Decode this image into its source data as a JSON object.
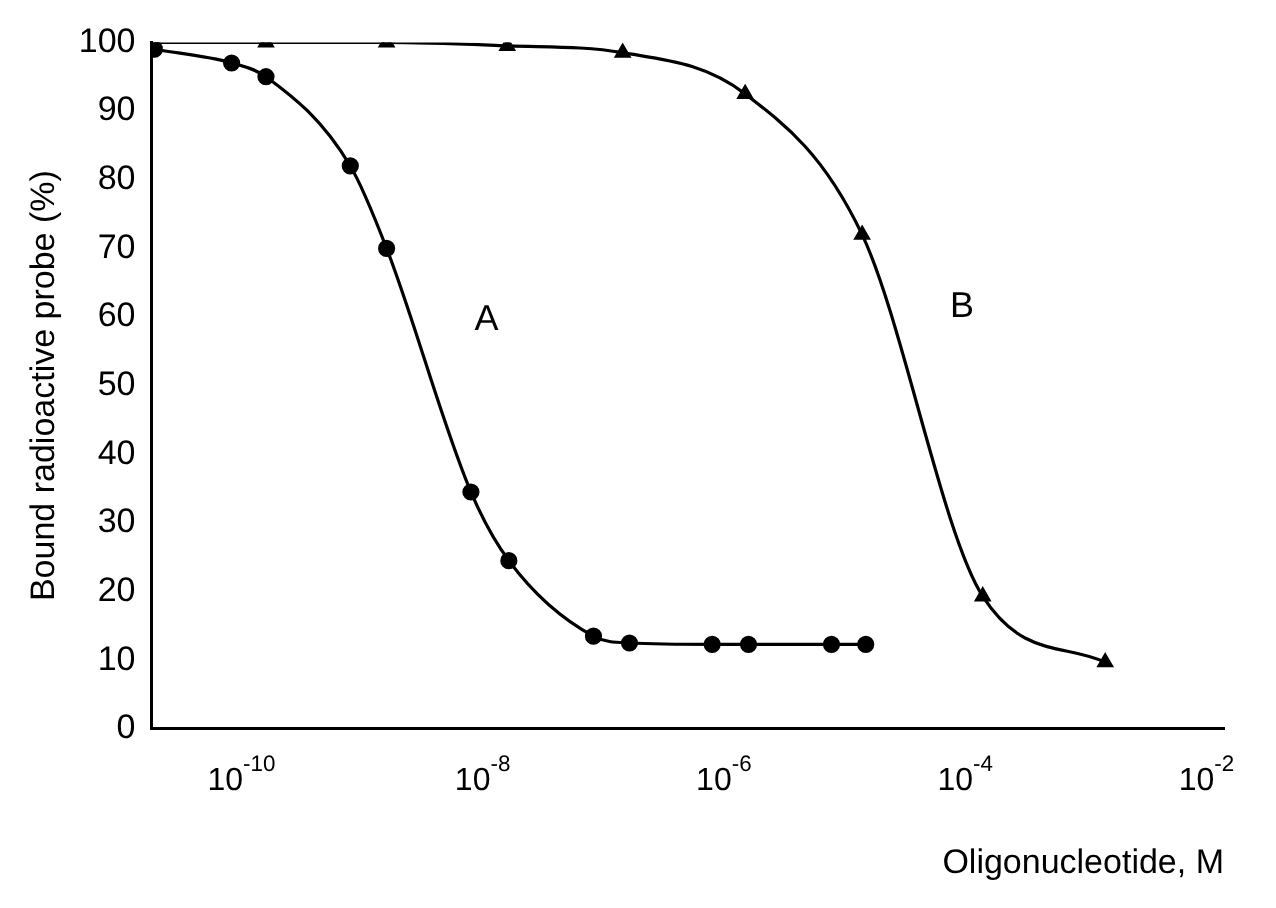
{
  "chart_data": {
    "type": "line",
    "xlabel": "Oligonucleotide, M",
    "ylabel": "Bound radioactive probe (%)",
    "log": "x",
    "xlim": [
      1.8e-11,
      0.014
    ],
    "ylim": [
      0,
      100
    ],
    "xticks": [
      {
        "value": 1e-10,
        "label": "10$^{-10}$"
      },
      {
        "value": 1e-08,
        "label": "10$^{-8}$"
      },
      {
        "value": 1e-06,
        "label": "10$^{-6}$"
      },
      {
        "value": 0.0001,
        "label": "10$^{-4}$"
      },
      {
        "value": 0.01,
        "label": "10$^{-2}$"
      }
    ],
    "yticks": [
      0,
      10,
      20,
      30,
      40,
      50,
      60,
      70,
      80,
      90,
      100
    ],
    "grid": false,
    "legend": false,
    "series": [
      {
        "name": "A",
        "color": "#000000",
        "marker": "circle",
        "x": [
          1.9e-11,
          8.3e-11,
          1.6e-10,
          8e-10,
          1.6e-09,
          8e-09,
          1.65e-08,
          8.3e-08,
          1.65e-07,
          8e-07,
          1.6e-06,
          7.8e-06,
          1.5e-05
        ],
        "values": [
          99,
          97,
          95,
          82,
          70,
          34.5,
          24.5,
          13.5,
          12.5,
          12.3,
          12.3,
          12.3,
          12.3
        ]
      },
      {
        "name": "B",
        "color": "#000000",
        "marker": "triangle",
        "x": [
          1.9e-11,
          1.6e-10,
          1.6e-09,
          1.6e-08,
          1.45e-07,
          1.5e-06,
          1.4e-05,
          0.00014,
          0.00145
        ],
        "values": [
          100,
          100,
          100,
          99.5,
          98.5,
          92.5,
          72,
          19.3,
          9.7
        ]
      }
    ]
  }
}
